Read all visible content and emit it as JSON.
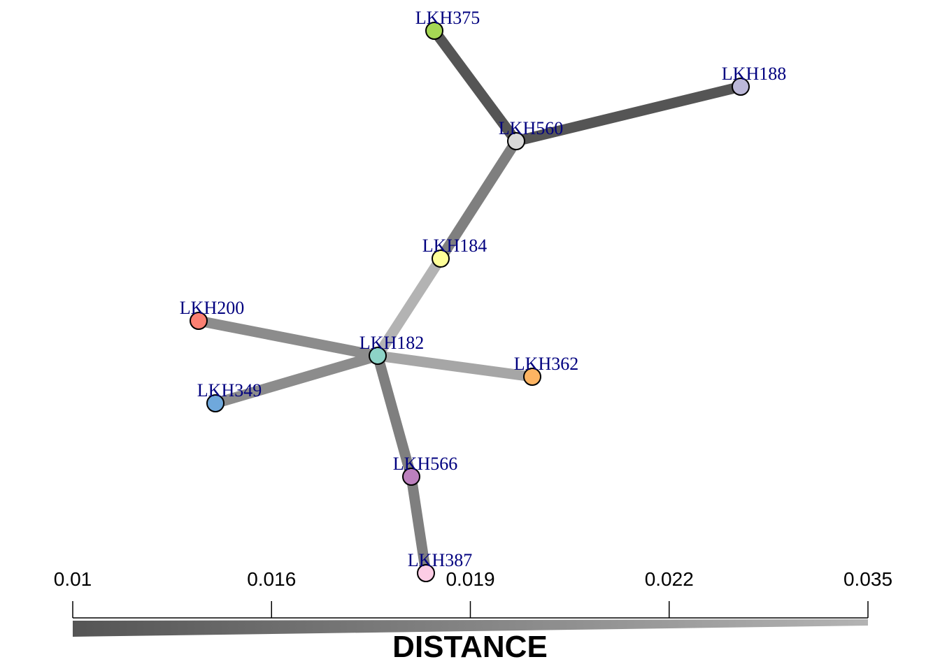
{
  "nodes": [
    {
      "id": "LKH375",
      "label": "LKH375",
      "color": "#a6d854"
    },
    {
      "id": "LKH188",
      "label": "LKH188",
      "color": "#bcb8d8"
    },
    {
      "id": "LKH560",
      "label": "LKH560",
      "color": "#d9d9d9"
    },
    {
      "id": "LKH184",
      "label": "LKH184",
      "color": "#ffff99"
    },
    {
      "id": "LKH200",
      "label": "LKH200",
      "color": "#fb8072"
    },
    {
      "id": "LKH182",
      "label": "LKH182",
      "color": "#8dd3c7"
    },
    {
      "id": "LKH362",
      "label": "LKH362",
      "color": "#fdb462"
    },
    {
      "id": "LKH349",
      "label": "LKH349",
      "color": "#6fa8dc"
    },
    {
      "id": "LKH566",
      "label": "LKH566",
      "color": "#bc80bd"
    },
    {
      "id": "LKH387",
      "label": "LKH387",
      "color": "#fccde5"
    }
  ],
  "edges": [
    {
      "from": "LKH375",
      "to": "LKH560",
      "color": "#555555"
    },
    {
      "from": "LKH188",
      "to": "LKH560",
      "color": "#555555"
    },
    {
      "from": "LKH560",
      "to": "LKH184",
      "color": "#7f7f7f"
    },
    {
      "from": "LKH184",
      "to": "LKH182",
      "color": "#b3b3b3"
    },
    {
      "from": "LKH200",
      "to": "LKH182",
      "color": "#8c8c8c"
    },
    {
      "from": "LKH349",
      "to": "LKH182",
      "color": "#8c8c8c"
    },
    {
      "from": "LKH182",
      "to": "LKH362",
      "color": "#a6a6a6"
    },
    {
      "from": "LKH182",
      "to": "LKH566",
      "color": "#7f7f7f"
    },
    {
      "from": "LKH566",
      "to": "LKH387",
      "color": "#7f7f7f"
    }
  ],
  "legend": {
    "title": "DISTANCE",
    "ticks": [
      "0.01",
      "0.016",
      "0.019",
      "0.022",
      "0.035"
    ],
    "color_start": "#555555",
    "color_end": "#b3b3b3"
  }
}
